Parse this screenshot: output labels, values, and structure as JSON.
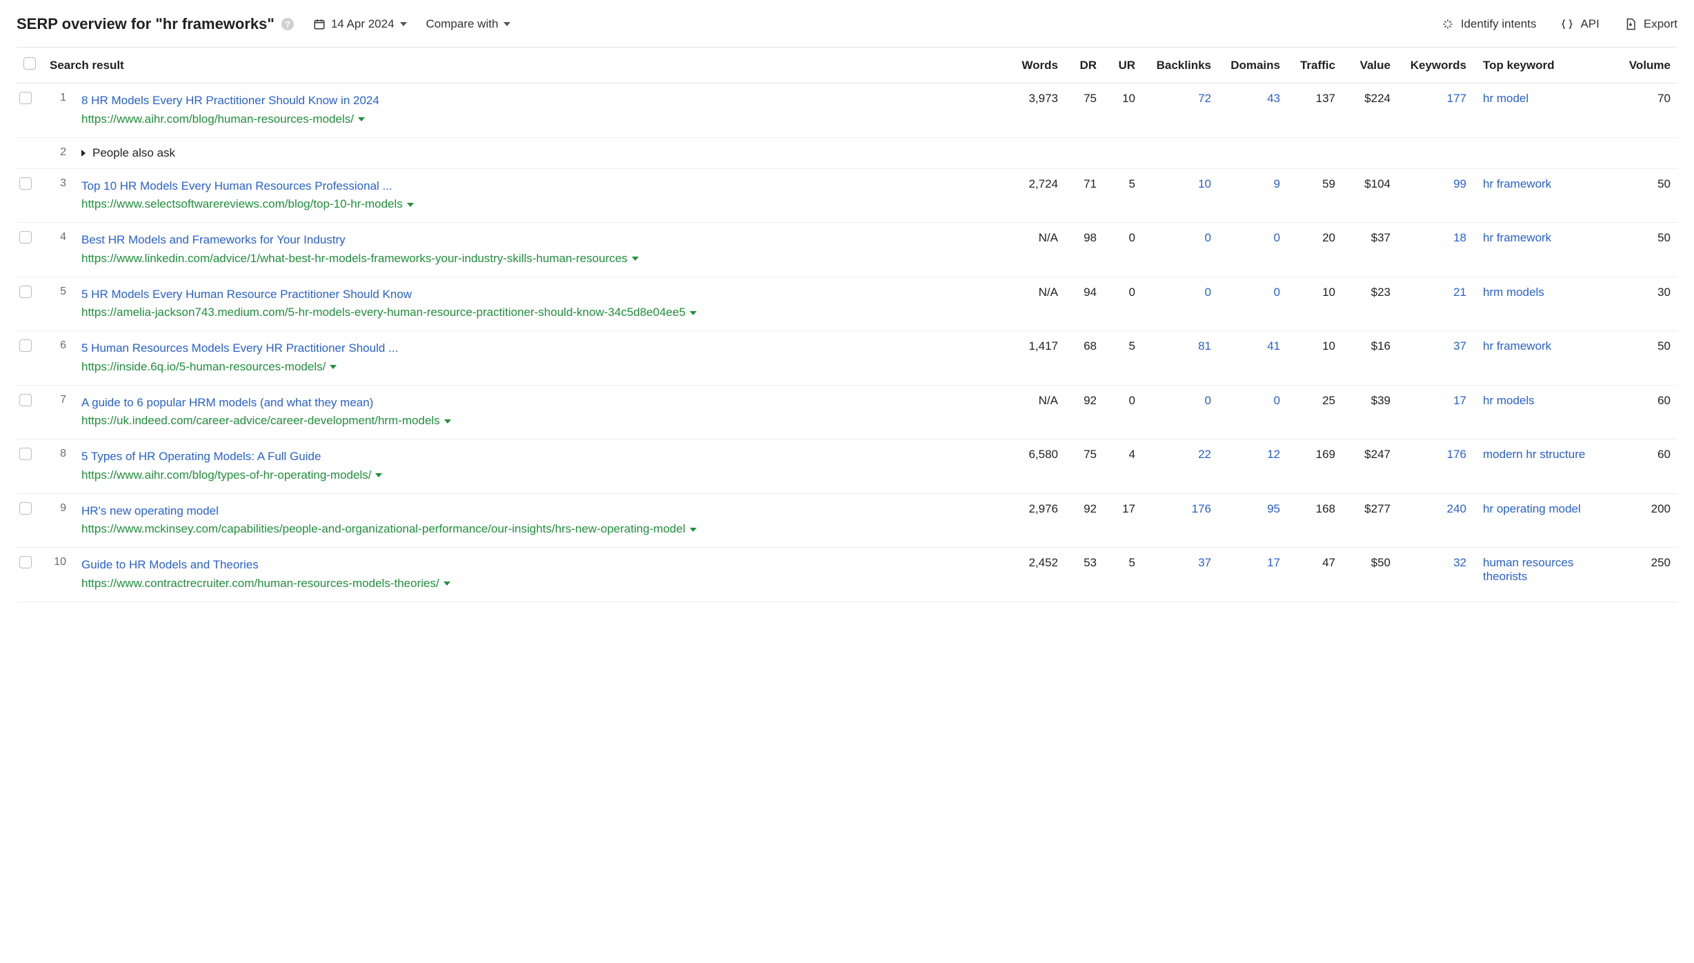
{
  "header": {
    "title": "SERP overview for \"hr frameworks\"",
    "date": "14 Apr 2024",
    "compare_label": "Compare with"
  },
  "actions": {
    "identify": "Identify intents",
    "api": "API",
    "export": "Export"
  },
  "columns": {
    "search_result": "Search result",
    "words": "Words",
    "dr": "DR",
    "ur": "UR",
    "backlinks": "Backlinks",
    "domains": "Domains",
    "traffic": "Traffic",
    "value": "Value",
    "keywords": "Keywords",
    "top_keyword": "Top keyword",
    "volume": "Volume"
  },
  "rows": [
    {
      "rank": "1",
      "title": "8 HR Models Every HR Practitioner Should Know in 2024",
      "url": "https://www.aihr.com/blog/human-resources-models/",
      "words": "3,973",
      "dr": "75",
      "ur": "10",
      "backlinks": "72",
      "domains": "43",
      "traffic": "137",
      "value": "$224",
      "keywords": "177",
      "top_keyword": "hr model",
      "volume": "70"
    },
    {
      "rank": "2",
      "paa": "People also ask"
    },
    {
      "rank": "3",
      "title": "Top 10 HR Models Every Human Resources Professional ...",
      "url": "https://www.selectsoftwarereviews.com/blog/top-10-hr-models",
      "words": "2,724",
      "dr": "71",
      "ur": "5",
      "backlinks": "10",
      "domains": "9",
      "traffic": "59",
      "value": "$104",
      "keywords": "99",
      "top_keyword": "hr framework",
      "volume": "50"
    },
    {
      "rank": "4",
      "title": "Best HR Models and Frameworks for Your Industry",
      "url": "https://www.linkedin.com/advice/1/what-best-hr-models-frameworks-your-industry-skills-human-resources",
      "words": "N/A",
      "dr": "98",
      "ur": "0",
      "backlinks": "0",
      "domains": "0",
      "traffic": "20",
      "value": "$37",
      "keywords": "18",
      "top_keyword": "hr framework",
      "volume": "50"
    },
    {
      "rank": "5",
      "title": "5 HR Models Every Human Resource Practitioner Should Know",
      "url": "https://amelia-jackson743.medium.com/5-hr-models-every-human-resource-practitioner-should-know-34c5d8e04ee5",
      "words": "N/A",
      "dr": "94",
      "ur": "0",
      "backlinks": "0",
      "domains": "0",
      "traffic": "10",
      "value": "$23",
      "keywords": "21",
      "top_keyword": "hrm models",
      "volume": "30"
    },
    {
      "rank": "6",
      "title": "5 Human Resources Models Every HR Practitioner Should ...",
      "url": "https://inside.6q.io/5-human-resources-models/",
      "words": "1,417",
      "dr": "68",
      "ur": "5",
      "backlinks": "81",
      "domains": "41",
      "traffic": "10",
      "value": "$16",
      "keywords": "37",
      "top_keyword": "hr framework",
      "volume": "50"
    },
    {
      "rank": "7",
      "title": "A guide to 6 popular HRM models (and what they mean)",
      "url": "https://uk.indeed.com/career-advice/career-development/hrm-models",
      "words": "N/A",
      "dr": "92",
      "ur": "0",
      "backlinks": "0",
      "domains": "0",
      "traffic": "25",
      "value": "$39",
      "keywords": "17",
      "top_keyword": "hr models",
      "volume": "60"
    },
    {
      "rank": "8",
      "title": "5 Types of HR Operating Models: A Full Guide",
      "url": "https://www.aihr.com/blog/types-of-hr-operating-models/",
      "words": "6,580",
      "dr": "75",
      "ur": "4",
      "backlinks": "22",
      "domains": "12",
      "traffic": "169",
      "value": "$247",
      "keywords": "176",
      "top_keyword": "modern hr structure",
      "volume": "60"
    },
    {
      "rank": "9",
      "title": "HR's new operating model",
      "url": "https://www.mckinsey.com/capabilities/people-and-organizational-performance/our-insights/hrs-new-operating-model",
      "words": "2,976",
      "dr": "92",
      "ur": "17",
      "backlinks": "176",
      "domains": "95",
      "traffic": "168",
      "value": "$277",
      "keywords": "240",
      "top_keyword": "hr operating model",
      "volume": "200"
    },
    {
      "rank": "10",
      "title": "Guide to HR Models and Theories",
      "url": "https://www.contractrecruiter.com/human-resources-models-theories/",
      "words": "2,452",
      "dr": "53",
      "ur": "5",
      "backlinks": "37",
      "domains": "17",
      "traffic": "47",
      "value": "$50",
      "keywords": "32",
      "top_keyword": "human resources theorists",
      "volume": "250"
    }
  ],
  "styling": {
    "link_color": "#2860d7",
    "url_color": "#1f8f3a",
    "border_color": "#e5e5e5",
    "text_color": "#222222",
    "muted_color": "#6b6b6b",
    "font_size_base": 17,
    "font_size_title": 22
  }
}
